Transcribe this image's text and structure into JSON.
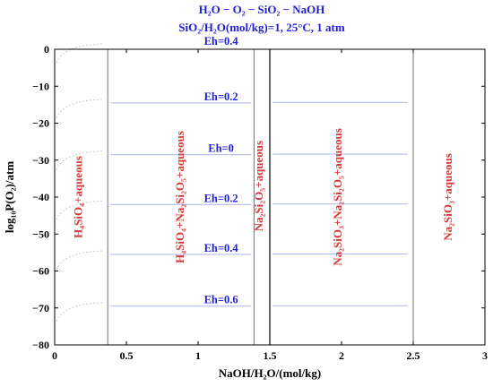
{
  "chart_data": {
    "type": "line",
    "title": [
      "H₂O − O₂ − SiO₂ − NaOH",
      "SiO₂/H₂O(mol/kg)=1, 25°C, 1 atm"
    ],
    "xlabel": "NaOH/H₂O/(mol/kg)",
    "ylabel": "log₁₀P(O₂)/atm",
    "xlim": [
      0,
      3
    ],
    "ylim": [
      -80,
      0
    ],
    "xticks": [
      0,
      0.5,
      1,
      1.5,
      2,
      2.5,
      3
    ],
    "yticks": [
      0,
      -10,
      -20,
      -30,
      -40,
      -50,
      -60,
      -70,
      -80
    ],
    "grid": false,
    "phase_boundaries": [
      0.37,
      1.39,
      1.5,
      2.5
    ],
    "eh_lines": [
      {
        "label": "Eh=0.4",
        "y": 0.5
      },
      {
        "label": "Eh=0.2",
        "y": -14.5
      },
      {
        "label": "Eh=0",
        "y": -28.5
      },
      {
        "label": "Eh=0.2",
        "y": -42
      },
      {
        "label": "Eh=0.4",
        "y": -55.5
      },
      {
        "label": "Eh=0.6",
        "y": -69.5
      }
    ],
    "eh_label_x": 1.16,
    "regions": [
      {
        "label": "H₄SiO₄+aqueous",
        "x": 0.19,
        "y": -40
      },
      {
        "label": "H₄SiO₄+Na₂Si₂O₅+aqueous",
        "x": 0.9,
        "y": -40
      },
      {
        "label": "Na₂Si₂O₅+aqueous",
        "x": 1.45,
        "y": -37
      },
      {
        "label": "Na₂SiO₃+Na₂Si₂O₅+aqueous",
        "x": 2.0,
        "y": -40
      },
      {
        "label": "Na₂SiO₃+aqueous",
        "x": 2.77,
        "y": -40
      }
    ]
  },
  "colors": {
    "title": "#1f1fd6",
    "eh_label": "#1f1fd6",
    "region_label": "#d23a3a",
    "eh_line": "#aab4ee",
    "boundary": "#707070",
    "curve": "#cccccc"
  }
}
